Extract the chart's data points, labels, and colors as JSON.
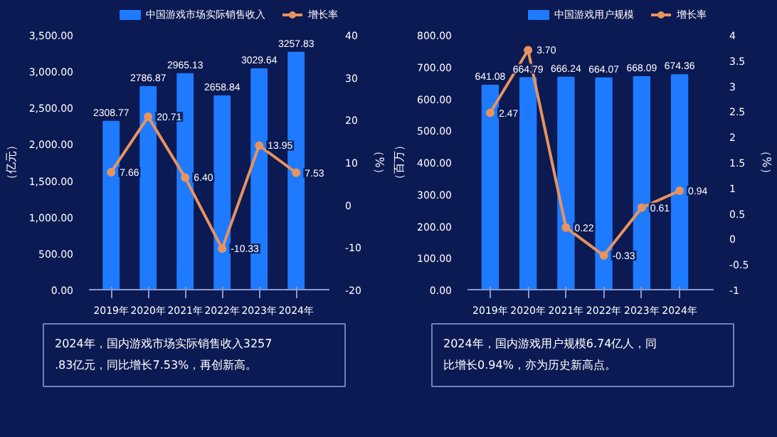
{
  "chart_data": [
    {
      "type": "bar",
      "categories": [
        "2019年",
        "2020年",
        "2021年",
        "2022年",
        "2023年",
        "2024年"
      ],
      "ylabel": "（亿元）",
      "y2label": "（%）",
      "series": [
        {
          "name": "中国游戏市场实际销售收入",
          "color": "#1e7bff",
          "values": [
            2308.77,
            2786.87,
            2965.13,
            2658.84,
            3029.64,
            3257.83
          ]
        },
        {
          "name": "增长率",
          "type": "line",
          "axis": "y2",
          "color": "#e8935e",
          "values": [
            7.66,
            20.71,
            6.4,
            -10.33,
            13.95,
            7.53
          ],
          "value_labels": [
            "7.66",
            "20.71",
            "6.40",
            "-10.33",
            "13.95",
            "7.53"
          ]
        }
      ],
      "ylim": [
        0,
        3500
      ],
      "yticks": [
        {
          "value": 0,
          "label": "0.00"
        },
        {
          "value": 500,
          "label": "500.00"
        },
        {
          "value": 1000,
          "label": "1,000.00"
        },
        {
          "value": 1500,
          "label": "1,500.00"
        },
        {
          "value": 2000,
          "label": "2,000.00"
        },
        {
          "value": 2500,
          "label": "2,500.00"
        },
        {
          "value": 3000,
          "label": "3,000.00"
        },
        {
          "value": 3500,
          "label": "3,500.00"
        }
      ],
      "y2lim": [
        -20,
        40
      ],
      "y2ticks": [
        -20,
        -10,
        0,
        10,
        20,
        30,
        40
      ],
      "data_labels": true,
      "marker": "circle",
      "legend": "top",
      "grid": false,
      "annotations": [
        "2024年，国内游戏市场实际销售收入3257.83亿元，同比增长7.53%，再创新高。"
      ]
    },
    {
      "type": "bar",
      "categories": [
        "2019年",
        "2020年",
        "2021年",
        "2022年",
        "2023年",
        "2024年"
      ],
      "ylabel": "（百万）",
      "y2label": "（%）",
      "series": [
        {
          "name": "中国游戏用户规模",
          "color": "#1e7bff",
          "values": [
            641.08,
            664.79,
            666.24,
            664.07,
            668.09,
            674.36
          ]
        },
        {
          "name": "增长率",
          "type": "line",
          "axis": "y2",
          "color": "#e8935e",
          "values": [
            2.47,
            3.7,
            0.22,
            -0.33,
            0.61,
            0.94
          ],
          "value_labels": [
            "2.47",
            "3.70",
            "0.22",
            "-0.33",
            "0.61",
            "0.94"
          ]
        }
      ],
      "ylim": [
        0,
        800
      ],
      "yticks": [
        {
          "value": 0,
          "label": "0.00"
        },
        {
          "value": 100,
          "label": "100.00"
        },
        {
          "value": 200,
          "label": "200.00"
        },
        {
          "value": 300,
          "label": "300.00"
        },
        {
          "value": 400,
          "label": "400.00"
        },
        {
          "value": 500,
          "label": "500.00"
        },
        {
          "value": 600,
          "label": "600.00"
        },
        {
          "value": 700,
          "label": "700.00"
        },
        {
          "value": 800,
          "label": "800.00"
        }
      ],
      "y2lim": [
        -1,
        4
      ],
      "y2ticks": [
        -1,
        -0.5,
        0,
        0.5,
        1,
        1.5,
        2,
        2.5,
        3,
        3.5,
        4
      ],
      "data_labels": true,
      "marker": "circle",
      "legend": "top",
      "grid": false,
      "annotations": [
        "2024年，国内游戏用户规模6.74亿人，同比增长0.94%，亦为历史新高点。"
      ]
    }
  ]
}
